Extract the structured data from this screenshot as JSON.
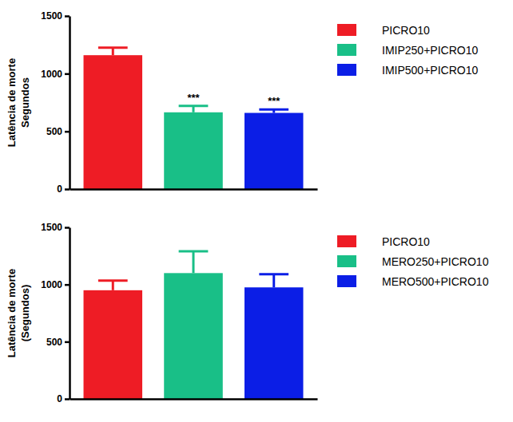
{
  "chart_data": [
    {
      "type": "bar",
      "ylabel": [
        "Latência de morte",
        "Segundos"
      ],
      "categories": [
        null
      ],
      "series": [
        {
          "name": "PICRO10",
          "color": "#ee1c25",
          "values": [
            1160
          ],
          "errors": [
            65
          ]
        },
        {
          "name": "IMIP250+PICRO10",
          "color": "#19bf87",
          "values": [
            665
          ],
          "errors": [
            55
          ],
          "significance": "***"
        },
        {
          "name": "IMIP500+PICRO10",
          "color": "#0b1ee6",
          "values": [
            660
          ],
          "errors": [
            30
          ],
          "significance": "***"
        }
      ],
      "ylim": [
        0,
        1500
      ],
      "yticks": [
        0,
        500,
        1000,
        1500
      ],
      "legend": "right"
    },
    {
      "type": "bar",
      "ylabel": [
        "Latência de morte",
        "(Segundos)"
      ],
      "categories": [
        null
      ],
      "series": [
        {
          "name": "PICRO10",
          "color": "#ee1c25",
          "values": [
            950
          ],
          "errors": [
            85
          ]
        },
        {
          "name": "MERO250+PICRO10",
          "color": "#19bf87",
          "values": [
            1100
          ],
          "errors": [
            190
          ]
        },
        {
          "name": "MERO500+PICRO10",
          "color": "#0b1ee6",
          "values": [
            975
          ],
          "errors": [
            115
          ]
        }
      ],
      "ylim": [
        0,
        1500
      ],
      "yticks": [
        0,
        500,
        1000,
        1500
      ],
      "legend": "right"
    }
  ]
}
